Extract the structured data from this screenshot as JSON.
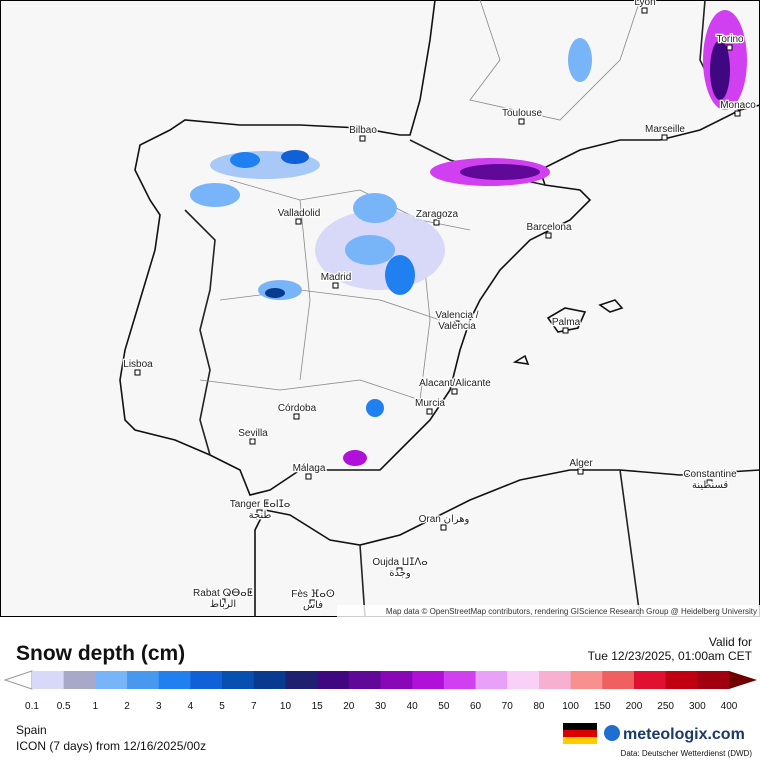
{
  "map": {
    "cities": [
      "Lyon",
      "Torino",
      "Monaco",
      "Marseille",
      "Toulouse",
      "Bilbao",
      "Zaragoza",
      "Barcelona",
      "Valladolid",
      "Madrid",
      "Valencia /\nValència",
      "Palma",
      "Lisboa",
      "Córdoba",
      "Sevilla",
      "Alacant/Alicante",
      "Murcia",
      "Málaga",
      "Alger",
      "Constantine\nقسنطينة",
      "Tanger ⵟⴰⵏⵊⴰ\nطنجة",
      "Oran وهران",
      "Oujda ⵡⵊⴷⴰ\nوجدة",
      "Rabat ⵕⴱⴰⵟ\nالرباط",
      "Fès ⴼⴰⵙ\nفاس"
    ],
    "attribution": "Map data © OpenStreetMap contributors, rendering GIScience Research Group @ Heidelberg University"
  },
  "legend": {
    "title": "Snow depth (cm)",
    "valid_label": "Valid for",
    "valid_time": "Tue 12/23/2025, 01:00am CET",
    "labels": [
      "0.1",
      "0.5",
      "1",
      "2",
      "3",
      "4",
      "5",
      "7",
      "10",
      "15",
      "20",
      "30",
      "40",
      "50",
      "60",
      "70",
      "80",
      "100",
      "150",
      "200",
      "250",
      "300",
      "400"
    ],
    "colors": [
      "#d8d8f8",
      "#a8a8c8",
      "#78b4f8",
      "#4898f0",
      "#2080f0",
      "#1060d8",
      "#0850b0",
      "#083a90",
      "#202070",
      "#400880",
      "#600898",
      "#8808b8",
      "#b010d8",
      "#d040f0",
      "#e8a0f8",
      "#f8d0f8",
      "#f8b0d0",
      "#f89090",
      "#f06060",
      "#e01030",
      "#c00010",
      "#a00010"
    ],
    "region": "Spain",
    "model": "ICON (7 days) from 12/16/2025/00z",
    "brand": "meteologix.com",
    "source": "Data: Deutscher Wetterdienst (DWD)"
  }
}
